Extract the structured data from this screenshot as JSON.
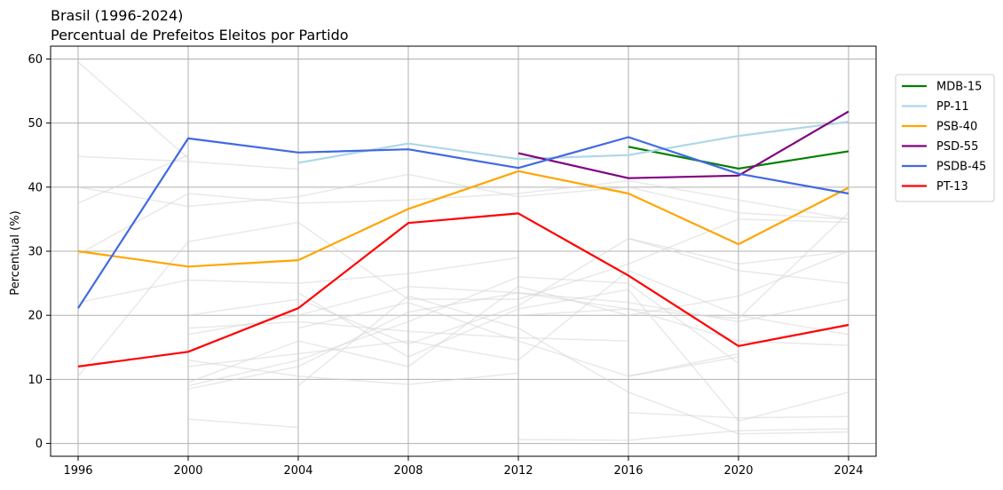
{
  "chart_data": {
    "type": "line",
    "title": "Brasil (1996-2024)",
    "subtitle": "Percentual de Prefeitos Eleitos por Partido",
    "xlabel": "",
    "ylabel": "Percentual (%)",
    "x": [
      1996,
      2000,
      2004,
      2008,
      2012,
      2016,
      2020,
      2024
    ],
    "x_ticks": [
      "1996",
      "2000",
      "2004",
      "2008",
      "2012",
      "2016",
      "2020",
      "2024"
    ],
    "y_ticks": [
      "0",
      "10",
      "20",
      "30",
      "40",
      "50",
      "60"
    ],
    "ylim": [
      -2,
      62
    ],
    "xlim": [
      1995,
      2025
    ],
    "grid": true,
    "legend_position": "right",
    "series": [
      {
        "name": "MDB-15",
        "color": "#008000",
        "values": [
          null,
          null,
          null,
          null,
          null,
          46.3,
          42.9,
          45.6
        ]
      },
      {
        "name": "PP-11",
        "color": "#add8e6",
        "values": [
          null,
          null,
          43.8,
          46.8,
          44.4,
          45.0,
          48.0,
          50.2
        ]
      },
      {
        "name": "PSB-40",
        "color": "#ffa500",
        "values": [
          30.0,
          27.6,
          28.6,
          36.6,
          42.5,
          39.0,
          31.1,
          39.9
        ]
      },
      {
        "name": "PSD-55",
        "color": "#800080",
        "values": [
          null,
          null,
          null,
          null,
          45.3,
          41.4,
          41.8,
          51.8
        ]
      },
      {
        "name": "PSDB-45",
        "color": "#4169e1",
        "values": [
          21.1,
          47.6,
          45.4,
          45.9,
          43.0,
          47.8,
          42.1,
          39.0
        ]
      },
      {
        "name": "PT-13",
        "color": "#ff0000",
        "values": [
          12.0,
          14.3,
          21.1,
          34.4,
          35.9,
          26.2,
          15.2,
          18.5
        ]
      }
    ],
    "background_series_color": "#d3d3d3",
    "background_series": [
      [
        59.5,
        44.5,
        null,
        null,
        null,
        null,
        null,
        null
      ],
      [
        44.8,
        44.0,
        42.8,
        null,
        null,
        null,
        null,
        null
      ],
      [
        37.5,
        45.0,
        null,
        null,
        null,
        null,
        null,
        null
      ],
      [
        40.0,
        37.0,
        38.5,
        42.0,
        38.5,
        40.0,
        36.0,
        35.0
      ],
      [
        29.5,
        39.0,
        37.5,
        38.0,
        39.0,
        41.0,
        38.0,
        35.0
      ],
      [
        22.0,
        25.5,
        25.0,
        26.5,
        29.0,
        null,
        null,
        null
      ],
      [
        10.5,
        31.5,
        34.5,
        22.5,
        22.5,
        28.0,
        35.0,
        34.5
      ],
      [
        null,
        20.0,
        22.5,
        15.5,
        21.5,
        32.0,
        27.0,
        25.0
      ],
      [
        null,
        18.0,
        19.0,
        17.5,
        16.5,
        16.0,
        null,
        null
      ],
      [
        null,
        17.0,
        20.0,
        24.5,
        23.5,
        22.0,
        19.0,
        22.5
      ],
      [
        null,
        12.0,
        14.0,
        16.0,
        13.0,
        27.0,
        20.0,
        17.0
      ],
      [
        null,
        9.5,
        16.0,
        12.0,
        24.5,
        20.0,
        23.0,
        30.0
      ],
      [
        null,
        8.5,
        12.0,
        20.5,
        23.5,
        21.0,
        19.5,
        36.0
      ],
      [
        null,
        3.8,
        2.5,
        null,
        null,
        null,
        null,
        null
      ],
      [
        null,
        13.0,
        10.5,
        9.2,
        11.0,
        null,
        null,
        null
      ],
      [
        null,
        9.0,
        13.0,
        19.0,
        26.0,
        25.0,
        12.5,
        null
      ],
      [
        null,
        null,
        9.0,
        23.0,
        18.0,
        8.0,
        1.5,
        1.8
      ],
      [
        null,
        null,
        18.0,
        22.0,
        16.0,
        10.5,
        13.5,
        null
      ],
      [
        null,
        null,
        20.0,
        20.0,
        20.0,
        21.0,
        16.0,
        15.3
      ],
      [
        null,
        null,
        23.5,
        13.5,
        21.0,
        24.0,
        3.5,
        8.0
      ],
      [
        null,
        null,
        null,
        null,
        0.6,
        0.5,
        2.0,
        2.3
      ],
      [
        null,
        null,
        null,
        null,
        null,
        4.8,
        4.0,
        4.2
      ],
      [
        null,
        null,
        null,
        null,
        null,
        10.5,
        14.0,
        null
      ],
      [
        null,
        null,
        null,
        null,
        null,
        32.0,
        28.0,
        30.0
      ]
    ]
  }
}
